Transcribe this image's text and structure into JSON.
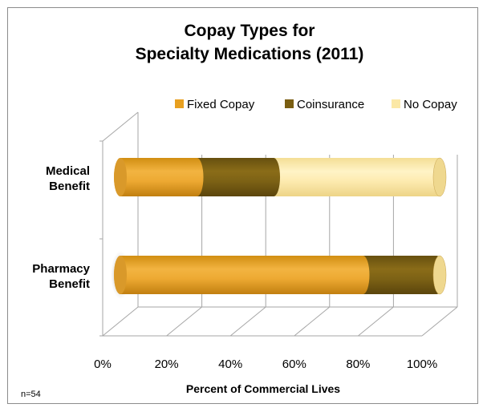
{
  "chart_data": {
    "type": "bar",
    "orientation": "horizontal",
    "stacked": true,
    "title_lines": [
      "Copay Types for",
      "Specialty Medications (2011)"
    ],
    "xlabel": "Percent of Commercial Lives",
    "ylabel": "",
    "xlim": [
      0,
      100
    ],
    "x_ticks": [
      "0%",
      "20%",
      "40%",
      "60%",
      "80%",
      "100%"
    ],
    "categories": [
      "Medical Benefit",
      "Pharmacy Benefit"
    ],
    "category_label_lines": [
      [
        "Medical",
        "Benefit"
      ],
      [
        "Pharmacy",
        "Benefit"
      ]
    ],
    "series": [
      {
        "name": "Fixed Copay",
        "values": [
          24,
          76
        ]
      },
      {
        "name": "Coinsurance",
        "values": [
          24,
          23
        ]
      },
      {
        "name": "No Copay",
        "values": [
          52,
          1
        ]
      }
    ],
    "legend_position": "top-right",
    "grid": true,
    "note": "n=54",
    "colors": {
      "Fixed Copay": "#E8A020",
      "Coinsurance": "#7A5E12",
      "No Copay": "#FBE8A6"
    }
  }
}
